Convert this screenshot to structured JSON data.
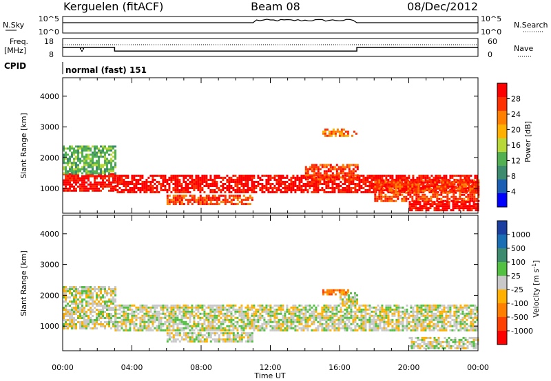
{
  "header": {
    "station": "Kerguelen (fitACF)",
    "beam": "Beam 08",
    "date": "08/Dec/2012"
  },
  "strip_labels": {
    "n_sky": "N.Sky",
    "n_search": "N.Search",
    "freq_line1": "Freq.",
    "freq_line2": "[MHz]",
    "nave": "Nave",
    "cpid": "CPID",
    "cpid_text": "normal (fast) 151"
  },
  "colors": {
    "power": [
      "#0000ff",
      "#1a5fb4",
      "#3d8b6e",
      "#52b052",
      "#b8d838",
      "#ffb000",
      "#ff8000",
      "#ff3000",
      "#ff0000"
    ],
    "velocity": [
      "#ff0000",
      "#ff4000",
      "#ff8000",
      "#ffb000",
      "#c8c8c8",
      "#52c040",
      "#3d8b6e",
      "#1a6fb4",
      "#1a3fa0"
    ]
  },
  "chart_data": [
    {
      "type": "line",
      "title": "N.Sky / N.Search",
      "left_ticks": [
        "10^5",
        "10^0"
      ],
      "right_ticks": [
        "10^5",
        "10^0"
      ],
      "xlim": [
        0,
        24
      ]
    },
    {
      "type": "line",
      "title": "Freq. / Nave",
      "left_ticks": [
        "18",
        "8"
      ],
      "right_ticks": [
        "60",
        "0"
      ],
      "series": [
        {
          "name": "Freq",
          "x": [
            0,
            3,
            3,
            17,
            17,
            24
          ],
          "values": [
            13,
            13,
            11,
            11,
            13,
            13
          ]
        }
      ],
      "ylim": [
        8,
        18
      ],
      "xlim": [
        0,
        24
      ]
    },
    {
      "type": "heatmap",
      "ylabel": "Slant Range [km]",
      "yticks": [
        "4000",
        "3000",
        "2000",
        "1000"
      ],
      "ylim": [
        200,
        4600
      ],
      "colorbar_label": "Power [dB]",
      "colorbar_ticks": [
        "28",
        "24",
        "20",
        "16",
        "12",
        "8",
        "4"
      ],
      "zlim": [
        0,
        32
      ],
      "regions": [
        {
          "t0": 0,
          "t1": 3,
          "r0": 900,
          "r1": 1500,
          "level": 8
        },
        {
          "t0": 3,
          "t1": 24,
          "r0": 850,
          "r1": 1450,
          "level": 8
        },
        {
          "t0": 14,
          "t1": 17,
          "r0": 1300,
          "r1": 1800,
          "level": 7
        },
        {
          "t0": 18,
          "t1": 24,
          "r0": 600,
          "r1": 1300,
          "level": 7
        },
        {
          "t0": 0,
          "t1": 3,
          "r0": 1500,
          "r1": 2400,
          "level": 3
        },
        {
          "t0": 6,
          "t1": 11,
          "r0": 500,
          "r1": 800,
          "level": 7
        },
        {
          "t0": 20,
          "t1": 24,
          "r0": 300,
          "r1": 600,
          "level": 8
        },
        {
          "t0": 15,
          "t1": 17,
          "r0": 2700,
          "r1": 2950,
          "level": 6
        }
      ]
    },
    {
      "type": "heatmap",
      "ylabel": "Slant Range [km]",
      "yticks": [
        "4000",
        "3000",
        "2000",
        "1000"
      ],
      "ylim": [
        200,
        4600
      ],
      "xlabel": "Time UT",
      "xticks": [
        "00:00",
        "04:00",
        "08:00",
        "12:00",
        "16:00",
        "20:00",
        "00:00"
      ],
      "xlim": [
        0,
        24
      ],
      "colorbar_label": "Velocity [m s^-1]",
      "colorbar_ticks": [
        "1000",
        "500",
        "100",
        "25",
        "-25",
        "-100",
        "-500",
        "-1000"
      ],
      "zlim": [
        -1200,
        1200
      ],
      "regions": [
        {
          "t0": 0,
          "t1": 3,
          "r0": 900,
          "r1": 2300,
          "level": 4
        },
        {
          "t0": 3,
          "t1": 24,
          "r0": 850,
          "r1": 1700,
          "level": 4
        },
        {
          "t0": 16,
          "t1": 17,
          "r0": 1700,
          "r1": 2100,
          "level": 4
        },
        {
          "t0": 15,
          "t1": 16.5,
          "r0": 2050,
          "r1": 2200,
          "level": 2
        },
        {
          "t0": 20,
          "t1": 24,
          "r0": 300,
          "r1": 650,
          "level": 4
        },
        {
          "t0": 6,
          "t1": 11,
          "r0": 500,
          "r1": 800,
          "level": 4
        }
      ]
    }
  ]
}
